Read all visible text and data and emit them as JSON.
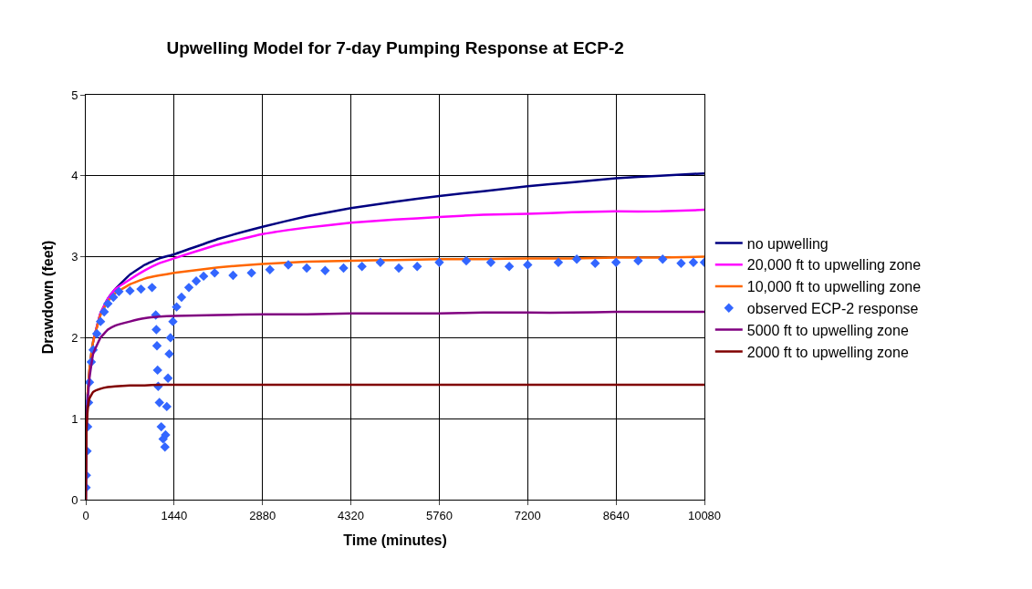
{
  "chart_data": {
    "type": "line",
    "title": "Upwelling Model for 7-day Pumping Response at ECP-2",
    "xlabel": "Time (minutes)",
    "ylabel": "Drawdown (feet)",
    "x": [
      0,
      10,
      30,
      60,
      120,
      240,
      360,
      480,
      720,
      960,
      1200,
      1440,
      2160,
      2880,
      3600,
      4320,
      5040,
      5760,
      6480,
      7200,
      7920,
      8640,
      9360,
      10080
    ],
    "xlim": [
      0,
      10080
    ],
    "xticks": [
      0,
      1440,
      2880,
      4320,
      5760,
      7200,
      8640,
      10080
    ],
    "ylim": [
      0,
      5
    ],
    "yticks": [
      0,
      1,
      2,
      3,
      4,
      5
    ],
    "grid": true,
    "legend": "right",
    "marker": "none",
    "line_style": "solid",
    "series": [
      {
        "name": "no upwelling",
        "color": "#000080",
        "values": [
          0,
          0.9,
          1.3,
          1.6,
          1.95,
          2.3,
          2.48,
          2.6,
          2.78,
          2.9,
          2.98,
          3.03,
          3.22,
          3.37,
          3.5,
          3.6,
          3.68,
          3.75,
          3.81,
          3.87,
          3.92,
          3.97,
          4.0,
          4.03
        ]
      },
      {
        "name": "20,000 ft to upwelling zone",
        "color": "#ff00ff",
        "values": [
          null,
          null,
          null,
          null,
          1.95,
          2.3,
          2.48,
          2.6,
          2.72,
          2.83,
          2.92,
          2.98,
          3.15,
          3.28,
          3.36,
          3.42,
          3.46,
          3.49,
          3.52,
          3.53,
          3.55,
          3.56,
          3.56,
          3.58
        ]
      },
      {
        "name": "10,000 ft to upwelling zone",
        "color": "#ff6600",
        "values": [
          null,
          null,
          1.3,
          1.6,
          1.95,
          2.28,
          2.45,
          2.55,
          2.66,
          2.73,
          2.77,
          2.8,
          2.87,
          2.91,
          2.94,
          2.95,
          2.96,
          2.97,
          2.97,
          2.98,
          2.98,
          2.99,
          2.99,
          3.0
        ]
      },
      {
        "name": "observed ECP-2 response",
        "color": "#3366ff",
        "type": "scatter",
        "marker": "diamond",
        "x": [
          5,
          10,
          20,
          30,
          45,
          60,
          90,
          120,
          180,
          240,
          300,
          360,
          450,
          540,
          720,
          900,
          1080,
          1140,
          1150,
          1160,
          1170,
          1180,
          1200,
          1230,
          1260,
          1290,
          1300,
          1320,
          1340,
          1360,
          1380,
          1420,
          1480,
          1560,
          1680,
          1800,
          1920,
          2100,
          2400,
          2700,
          3000,
          3300,
          3600,
          3900,
          4200,
          4500,
          4800,
          5100,
          5400,
          5760,
          6200,
          6600,
          6900,
          7200,
          7700,
          8000,
          8300,
          8640,
          9000,
          9400,
          9700,
          9900,
          10080
        ],
        "values": [
          0.15,
          0.3,
          0.6,
          0.9,
          1.2,
          1.45,
          1.7,
          1.85,
          2.05,
          2.2,
          2.32,
          2.42,
          2.5,
          2.57,
          2.58,
          2.6,
          2.62,
          2.28,
          2.1,
          1.9,
          1.6,
          1.4,
          1.2,
          0.9,
          0.75,
          0.65,
          0.8,
          1.15,
          1.5,
          1.8,
          2.0,
          2.2,
          2.38,
          2.5,
          2.62,
          2.7,
          2.76,
          2.8,
          2.77,
          2.8,
          2.84,
          2.9,
          2.86,
          2.83,
          2.86,
          2.88,
          2.93,
          2.86,
          2.88,
          2.93,
          2.95,
          2.93,
          2.88,
          2.9,
          2.93,
          2.97,
          2.92,
          2.93,
          2.95,
          2.97,
          2.92,
          2.93,
          2.93
        ]
      },
      {
        "name": "5000 ft to upwelling zone",
        "color": "#800080",
        "values": [
          0,
          0.85,
          1.2,
          1.5,
          1.8,
          2.0,
          2.1,
          2.15,
          2.2,
          2.24,
          2.26,
          2.27,
          2.28,
          2.29,
          2.29,
          2.3,
          2.3,
          2.3,
          2.31,
          2.31,
          2.31,
          2.32,
          2.32,
          2.32
        ]
      },
      {
        "name": "2000 ft to upwelling zone",
        "color": "#800000",
        "values": [
          0,
          0.8,
          1.1,
          1.25,
          1.33,
          1.37,
          1.39,
          1.4,
          1.41,
          1.41,
          1.42,
          1.42,
          1.42,
          1.42,
          1.42,
          1.42,
          1.42,
          1.42,
          1.42,
          1.42,
          1.42,
          1.42,
          1.42,
          1.42
        ]
      }
    ]
  }
}
